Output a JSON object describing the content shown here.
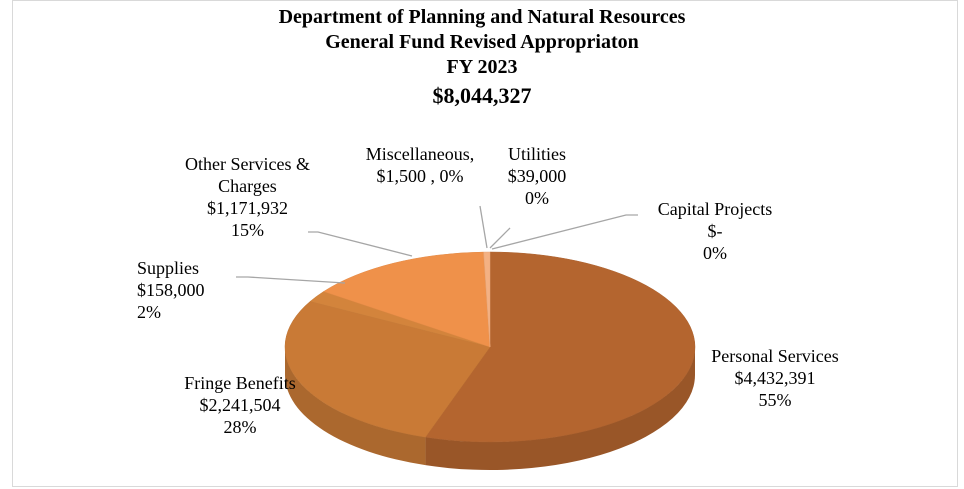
{
  "chart_data": {
    "type": "pie",
    "title": [
      "Department of Planning and Natural Resources",
      "General Fund Revised Appropriaton",
      "FY 2023",
      "$8,044,327"
    ],
    "categories": [
      "Personal Services",
      "Fringe Benefits",
      "Supplies",
      "Other Services & Charges",
      "Miscellaneous,",
      "Utilities",
      "Capital Projects"
    ],
    "values": [
      4432391,
      2241504,
      158000,
      1171932,
      1500,
      39000,
      0
    ],
    "value_labels": [
      "$4,432,391",
      "$2,241,504",
      "$158,000",
      "$1,171,932",
      "$1,500 ,",
      "$39,000",
      "$-"
    ],
    "percent_labels": [
      "55%",
      "28%",
      "2%",
      "15%",
      "0%",
      "0%",
      "0%"
    ],
    "colors": [
      "#b4652f",
      "#c97a36",
      "#d3843c",
      "#ef914a",
      "#f2a66a",
      "#f4b183",
      "#f6c39d"
    ]
  }
}
